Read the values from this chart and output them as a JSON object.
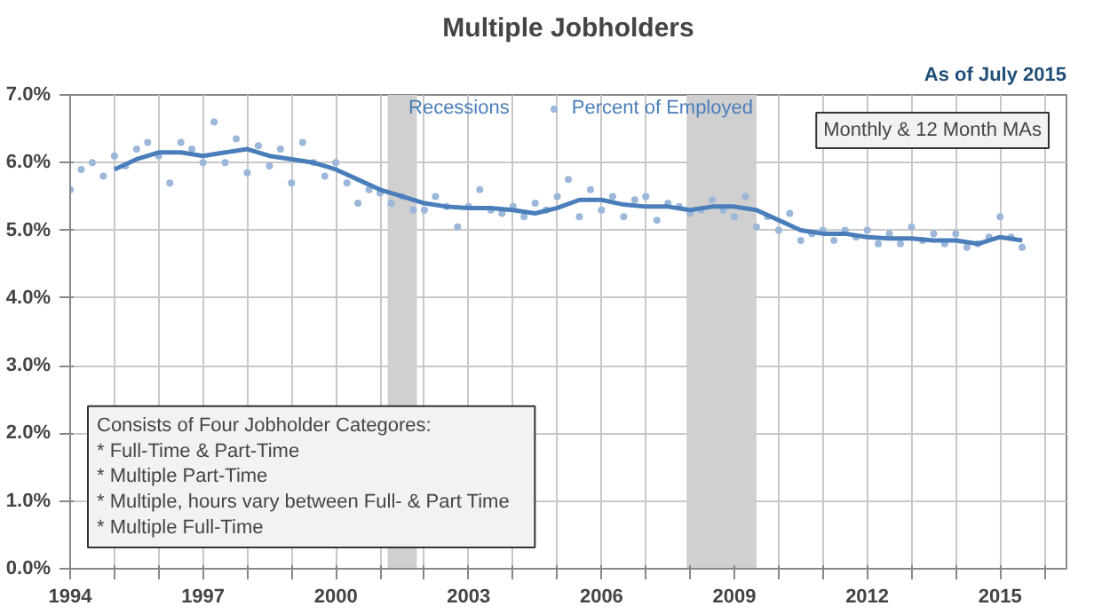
{
  "chart_data": {
    "type": "scatter",
    "title": "Multiple Jobholders",
    "subtitle": "As of July 2015",
    "annotations": [
      "Monthly & 12 Month MAs",
      "Consists of Four Jobholder Categores:\n  * Full-Time & Part-Time\n  * Multiple Part-Time\n  * Multiple, hours vary between  Full- & Part Time\n  * Multiple Full-Time"
    ],
    "xlim": [
      1994,
      2016.5
    ],
    "xticks": [
      1994,
      {
        "value": 1995,
        "label": null
      },
      {
        "value": 1996,
        "label": null
      },
      1997,
      {
        "value": 1998,
        "label": null
      },
      {
        "value": 1999,
        "label": null
      },
      2000,
      {
        "value": 2001,
        "label": null
      },
      {
        "value": 2002,
        "label": null
      },
      2003,
      {
        "value": 2004,
        "label": null
      },
      {
        "value": 2005,
        "label": null
      },
      2006,
      {
        "value": 2007,
        "label": null
      },
      {
        "value": 2008,
        "label": null
      },
      2009,
      {
        "value": 2010,
        "label": null
      },
      {
        "value": 2011,
        "label": null
      },
      2012,
      {
        "value": 2013,
        "label": null
      },
      {
        "value": 2014,
        "label": null
      },
      2015,
      {
        "value": 2016,
        "label": null
      }
    ],
    "ylim": [
      0,
      7
    ],
    "yticks": [
      {
        "value": 0,
        "label": "0.0%"
      },
      {
        "value": 1,
        "label": "1.0%"
      },
      {
        "value": 2,
        "label": "2.0%"
      },
      {
        "value": 3,
        "label": "3.0%"
      },
      {
        "value": 4,
        "label": "4.0%"
      },
      {
        "value": 5,
        "label": "5.0%"
      },
      {
        "value": 6,
        "label": "6.0%"
      },
      {
        "value": 7,
        "label": "7.0%"
      }
    ],
    "grid": true,
    "legend": "top",
    "bands": [
      {
        "axis": "x",
        "from": 2001.17,
        "to": 2001.83,
        "label": "Recessions",
        "color": "#d0d0d0"
      },
      {
        "axis": "x",
        "from": 2007.92,
        "to": 2009.5,
        "color": "#d0d0d0"
      }
    ],
    "series": [
      {
        "name": "Percent of Employed",
        "marker": "circle",
        "color": "#9bb7d9",
        "x": [
          1994.0,
          1994.25,
          1994.5,
          1994.75,
          1995.0,
          1995.25,
          1995.5,
          1995.75,
          1996.0,
          1996.25,
          1996.5,
          1996.75,
          1997.0,
          1997.25,
          1997.5,
          1997.75,
          1998.0,
          1998.25,
          1998.5,
          1998.75,
          1999.0,
          1999.25,
          1999.5,
          1999.75,
          2000.0,
          2000.25,
          2000.5,
          2000.75,
          2001.0,
          2001.25,
          2001.5,
          2001.75,
          2002.0,
          2002.25,
          2002.5,
          2002.75,
          2003.0,
          2003.25,
          2003.5,
          2003.75,
          2004.0,
          2004.25,
          2004.5,
          2004.75,
          2005.0,
          2005.25,
          2005.5,
          2005.75,
          2006.0,
          2006.25,
          2006.5,
          2006.75,
          2007.0,
          2007.25,
          2007.5,
          2007.75,
          2008.0,
          2008.25,
          2008.5,
          2008.75,
          2009.0,
          2009.25,
          2009.5,
          2009.75,
          2010.0,
          2010.25,
          2010.5,
          2010.75,
          2011.0,
          2011.25,
          2011.5,
          2011.75,
          2012.0,
          2012.25,
          2012.5,
          2012.75,
          2013.0,
          2013.25,
          2013.5,
          2013.75,
          2014.0,
          2014.25,
          2014.5,
          2014.75,
          2015.0,
          2015.25,
          2015.5
        ],
        "values": [
          5.6,
          5.9,
          6.0,
          5.8,
          6.1,
          5.95,
          6.2,
          6.3,
          6.1,
          5.7,
          6.3,
          6.2,
          6.0,
          6.6,
          6.0,
          6.35,
          5.85,
          6.25,
          5.95,
          6.2,
          5.7,
          6.3,
          6.0,
          5.8,
          6.0,
          5.7,
          5.4,
          5.6,
          5.55,
          5.4,
          5.5,
          5.3,
          5.3,
          5.5,
          5.35,
          5.05,
          5.35,
          5.6,
          5.3,
          5.25,
          5.35,
          5.2,
          5.4,
          5.3,
          5.5,
          5.75,
          5.2,
          5.6,
          5.3,
          5.5,
          5.2,
          5.45,
          5.5,
          5.15,
          5.4,
          5.35,
          5.25,
          5.3,
          5.45,
          5.3,
          5.2,
          5.5,
          5.05,
          5.2,
          5.0,
          5.25,
          4.85,
          4.95,
          5.0,
          4.85,
          5.0,
          4.9,
          5.0,
          4.8,
          4.95,
          4.8,
          5.05,
          4.85,
          4.95,
          4.8,
          4.95,
          4.75,
          4.8,
          4.9,
          5.2,
          4.9,
          4.75
        ]
      },
      {
        "type": "line",
        "color": "#4a7ebb",
        "x": [
          1995.0,
          1995.5,
          1996.0,
          1996.5,
          1997.0,
          1997.5,
          1998.0,
          1998.5,
          1999.0,
          1999.5,
          2000.0,
          2000.5,
          2001.0,
          2001.5,
          2002.0,
          2002.5,
          2003.0,
          2003.5,
          2004.0,
          2004.5,
          2005.0,
          2005.5,
          2006.0,
          2006.5,
          2007.0,
          2007.5,
          2008.0,
          2008.5,
          2009.0,
          2009.5,
          2010.0,
          2010.5,
          2011.0,
          2011.5,
          2012.0,
          2012.5,
          2013.0,
          2013.5,
          2014.0,
          2014.5,
          2015.0,
          2015.5
        ],
        "values": [
          5.9,
          6.05,
          6.15,
          6.15,
          6.1,
          6.15,
          6.2,
          6.1,
          6.05,
          6.0,
          5.9,
          5.75,
          5.6,
          5.5,
          5.4,
          5.35,
          5.33,
          5.33,
          5.3,
          5.25,
          5.33,
          5.45,
          5.45,
          5.38,
          5.35,
          5.35,
          5.3,
          5.35,
          5.35,
          5.3,
          5.15,
          5.0,
          4.95,
          4.95,
          4.9,
          4.88,
          4.88,
          4.85,
          4.85,
          4.8,
          4.9,
          4.85
        ]
      }
    ]
  }
}
